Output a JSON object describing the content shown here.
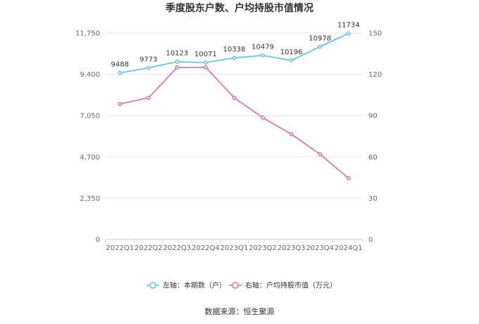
{
  "chart_data": {
    "type": "line",
    "title": "季度股东户数、户均持股市值情况",
    "categories": [
      "2022Q1",
      "2022Q2",
      "2022Q3",
      "2022Q4",
      "2023Q1",
      "2023Q2",
      "2023Q3",
      "2023Q4",
      "2024Q1"
    ],
    "left_axis": {
      "ticks": [
        "0",
        "2,350",
        "4,700",
        "7,050",
        "9,400",
        "11,750"
      ],
      "min": 0,
      "max": 11750
    },
    "right_axis": {
      "ticks": [
        "0",
        "30",
        "60",
        "90",
        "120",
        "150"
      ],
      "min": 0,
      "max": 150
    },
    "series": [
      {
        "name": "左轴：本期数（户）",
        "axis": "left",
        "color": "#5bc0eb",
        "values": [
          9488,
          9773,
          10123,
          10071,
          10338,
          10479,
          10196,
          10978,
          11734
        ],
        "labels": [
          "9488",
          "9773",
          "10123",
          "10071",
          "10338",
          "10479",
          "10196",
          "10978",
          "11734"
        ]
      },
      {
        "name": "右轴：户均持股市值（万元）",
        "axis": "right",
        "color": "#d46ab4",
        "values": [
          98.5,
          103,
          125,
          125.2,
          103,
          88.5,
          76.5,
          62,
          44.5
        ]
      }
    ],
    "grid": true,
    "legend_position": "bottom"
  },
  "source": "数据来源：恒生聚源"
}
